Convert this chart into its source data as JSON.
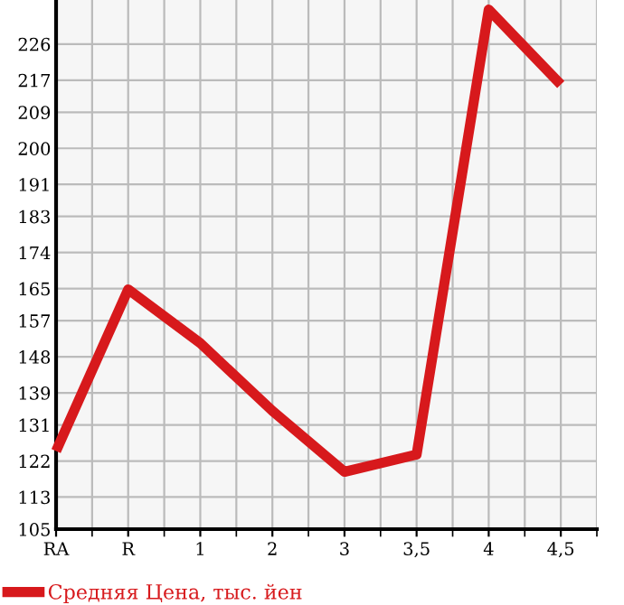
{
  "chart_data": {
    "type": "line",
    "categories": [
      "RA",
      "R",
      "1",
      "2",
      "3",
      "3,5",
      "4",
      "4,5"
    ],
    "series": [
      {
        "name": "Средняя Цена, тыс. йен",
        "color": "#d7191c",
        "values": [
          124.5,
          164.8,
          151.4,
          134.5,
          119.3,
          123.6,
          234.6,
          215.9
        ]
      }
    ],
    "ylim": [
      105,
      237
    ],
    "yticks": [
      105,
      113,
      122,
      131,
      139,
      148,
      157,
      165,
      174,
      183,
      191,
      200,
      209,
      217,
      226
    ],
    "grid": true,
    "legend": "bottom",
    "marker": "none",
    "line_style": "solid"
  }
}
